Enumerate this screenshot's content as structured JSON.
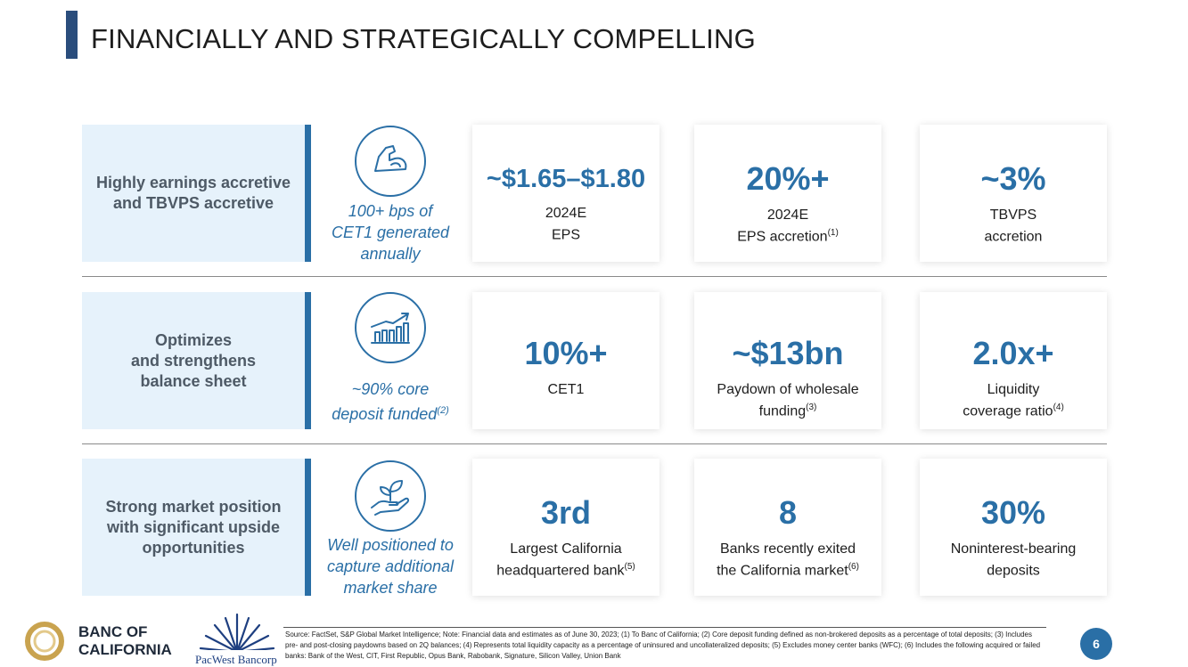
{
  "title": "FINANCIALLY AND STRATEGICALLY COMPELLING",
  "rows": [
    {
      "label": [
        "Highly earnings accretive",
        "and TBVPS accretive"
      ],
      "icon": "flexed-arm-icon",
      "note": [
        "100+ bps of",
        "CET1 generated",
        "annually"
      ],
      "note_sup": "",
      "cards": [
        {
          "value": "~$1.65–$1.80",
          "sub1": "2024E",
          "sub2": "EPS",
          "sup": ""
        },
        {
          "value": "20%+",
          "sub1": "2024E",
          "sub2": "EPS accretion",
          "sup": "(1)"
        },
        {
          "value": "~3%",
          "sub1": "TBVPS",
          "sub2": "accretion",
          "sup": ""
        }
      ]
    },
    {
      "label": [
        "Optimizes",
        "and strengthens",
        "balance sheet"
      ],
      "icon": "growth-chart-icon",
      "note": [
        "~90% core",
        "deposit funded"
      ],
      "note_sup": "(2)",
      "cards": [
        {
          "value": "10%+",
          "sub1": "CET1",
          "sub2": "",
          "sup": ""
        },
        {
          "value": "~$13bn",
          "sub1": "Paydown of wholesale",
          "sub2": "funding",
          "sup": "(3)"
        },
        {
          "value": "2.0x+",
          "sub1": "Liquidity",
          "sub2": "coverage ratio",
          "sup": "(4)"
        }
      ]
    },
    {
      "label": [
        "Strong market position",
        "with significant upside",
        "opportunities"
      ],
      "icon": "hand-plant-icon",
      "note": [
        "Well positioned to",
        "capture additional",
        "market share"
      ],
      "note_sup": "",
      "cards": [
        {
          "value": "3rd",
          "sub1": "Largest California",
          "sub2": "headquartered bank",
          "sup": "(5)"
        },
        {
          "value": "8",
          "sub1": "Banks recently exited",
          "sub2": "the California market",
          "sup": "(6)"
        },
        {
          "value": "30%",
          "sub1": "Noninterest-bearing",
          "sub2": "deposits",
          "sup": ""
        }
      ]
    }
  ],
  "footer": {
    "source": "Source: FactSet, S&P Global Market Intelligence; Note: Financial data and estimates as of June 30, 2023; (1) To Banc of California; (2) Core deposit funding defined as non-brokered deposits as a percentage of total deposits; (3) Includes pre- and post-closing paydowns based on 2Q balances; (4) Represents total liquidity capacity as a percentage of uninsured and uncollateralized deposits; (5) Excludes money center banks (WFC); (6) Includes the following acquired or failed banks: Bank of the West, CIT, First Republic, Opus Bank, Rabobank, Signature, Silicon Valley, Union Bank",
    "page_number": "6",
    "logo_boc": [
      "BANC OF",
      "CALIFORNIA"
    ],
    "logo_pacwest": "PacWest Bancorp"
  },
  "colors": {
    "accent": "#2a6fa6",
    "title_bar": "#2a4d7c",
    "label_bg": "#e6f2fb"
  }
}
